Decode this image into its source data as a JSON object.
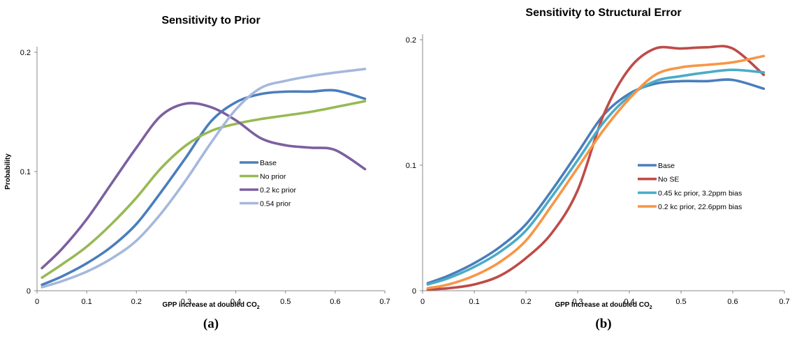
{
  "chart_data": [
    {
      "type": "line",
      "title": "Sensitivity to Prior",
      "xlabel": "GPP increase at doubled CO",
      "xlabel_sub": "2",
      "ylabel": "Probability",
      "panel_label": "(a)",
      "xlim": [
        0,
        0.7
      ],
      "ylim": [
        0,
        0.2
      ],
      "x_ticks": [
        "0",
        "0.1",
        "0.2",
        "0.3",
        "0.4",
        "0.5",
        "0.6",
        "0.7"
      ],
      "y_ticks": [
        "0",
        "0.1",
        "0.2"
      ],
      "grid": false,
      "legend_position": "center-right",
      "series": [
        {
          "name": "Base",
          "color": "#4a7ebb",
          "x": [
            0.01,
            0.05,
            0.1,
            0.15,
            0.2,
            0.25,
            0.3,
            0.35,
            0.4,
            0.45,
            0.5,
            0.55,
            0.6,
            0.66
          ],
          "y": [
            0.005,
            0.012,
            0.023,
            0.037,
            0.056,
            0.083,
            0.112,
            0.142,
            0.158,
            0.165,
            0.167,
            0.167,
            0.168,
            0.161
          ]
        },
        {
          "name": "No prior",
          "color": "#98b954",
          "x": [
            0.01,
            0.05,
            0.1,
            0.15,
            0.2,
            0.25,
            0.3,
            0.35,
            0.4,
            0.45,
            0.5,
            0.55,
            0.6,
            0.66
          ],
          "y": [
            0.011,
            0.022,
            0.037,
            0.056,
            0.078,
            0.103,
            0.122,
            0.134,
            0.14,
            0.144,
            0.147,
            0.15,
            0.154,
            0.159
          ]
        },
        {
          "name": "0.2 kc prior",
          "color": "#7d5fa0",
          "x": [
            0.01,
            0.05,
            0.1,
            0.15,
            0.2,
            0.25,
            0.3,
            0.35,
            0.4,
            0.45,
            0.5,
            0.55,
            0.6,
            0.66
          ],
          "y": [
            0.019,
            0.035,
            0.06,
            0.09,
            0.12,
            0.147,
            0.157,
            0.154,
            0.143,
            0.128,
            0.122,
            0.12,
            0.118,
            0.102
          ]
        },
        {
          "name": "0.54 prior",
          "color": "#a5b8dc",
          "x": [
            0.01,
            0.05,
            0.1,
            0.15,
            0.2,
            0.25,
            0.3,
            0.35,
            0.4,
            0.45,
            0.5,
            0.55,
            0.6,
            0.66
          ],
          "y": [
            0.003,
            0.008,
            0.016,
            0.027,
            0.042,
            0.065,
            0.093,
            0.124,
            0.152,
            0.17,
            0.176,
            0.18,
            0.183,
            0.186
          ]
        }
      ]
    },
    {
      "type": "line",
      "title": "Sensitivity to Structural Error",
      "xlabel": "GPP Increase at doubled CO",
      "xlabel_sub": "2",
      "ylabel": "",
      "panel_label": "(b)",
      "xlim": [
        0,
        0.7
      ],
      "ylim": [
        0,
        0.2
      ],
      "x_ticks": [
        "0",
        "0.1",
        "0.2",
        "0.3",
        "0.4",
        "0.5",
        "0.6",
        "0.7"
      ],
      "y_ticks": [
        "0",
        "0.1",
        "0.2"
      ],
      "grid": false,
      "legend_position": "center-right",
      "series": [
        {
          "name": "Base",
          "color": "#4a7ebb",
          "x": [
            0.01,
            0.05,
            0.1,
            0.15,
            0.2,
            0.25,
            0.3,
            0.35,
            0.4,
            0.45,
            0.5,
            0.55,
            0.6,
            0.66
          ],
          "y": [
            0.006,
            0.012,
            0.022,
            0.035,
            0.053,
            0.08,
            0.11,
            0.14,
            0.157,
            0.165,
            0.167,
            0.167,
            0.168,
            0.161
          ]
        },
        {
          "name": "No SE",
          "color": "#be4b48",
          "x": [
            0.01,
            0.05,
            0.1,
            0.15,
            0.2,
            0.25,
            0.3,
            0.35,
            0.4,
            0.45,
            0.5,
            0.55,
            0.6,
            0.66
          ],
          "y": [
            0.001,
            0.002,
            0.005,
            0.012,
            0.026,
            0.046,
            0.08,
            0.14,
            0.177,
            0.193,
            0.193,
            0.194,
            0.193,
            0.172
          ]
        },
        {
          "name": "0.45 kc prior, 3.2ppm bias",
          "color": "#4bacc6",
          "x": [
            0.01,
            0.05,
            0.1,
            0.15,
            0.2,
            0.25,
            0.3,
            0.35,
            0.4,
            0.45,
            0.5,
            0.55,
            0.6,
            0.66
          ],
          "y": [
            0.005,
            0.01,
            0.019,
            0.031,
            0.048,
            0.075,
            0.104,
            0.134,
            0.155,
            0.167,
            0.171,
            0.174,
            0.176,
            0.174
          ]
        },
        {
          "name": "0.2 kc prior, 22.6ppm bias",
          "color": "#f79646",
          "x": [
            0.01,
            0.05,
            0.1,
            0.15,
            0.2,
            0.25,
            0.3,
            0.35,
            0.4,
            0.45,
            0.5,
            0.55,
            0.6,
            0.66
          ],
          "y": [
            0.002,
            0.005,
            0.012,
            0.023,
            0.04,
            0.068,
            0.098,
            0.128,
            0.153,
            0.172,
            0.178,
            0.18,
            0.182,
            0.187
          ]
        }
      ]
    }
  ]
}
